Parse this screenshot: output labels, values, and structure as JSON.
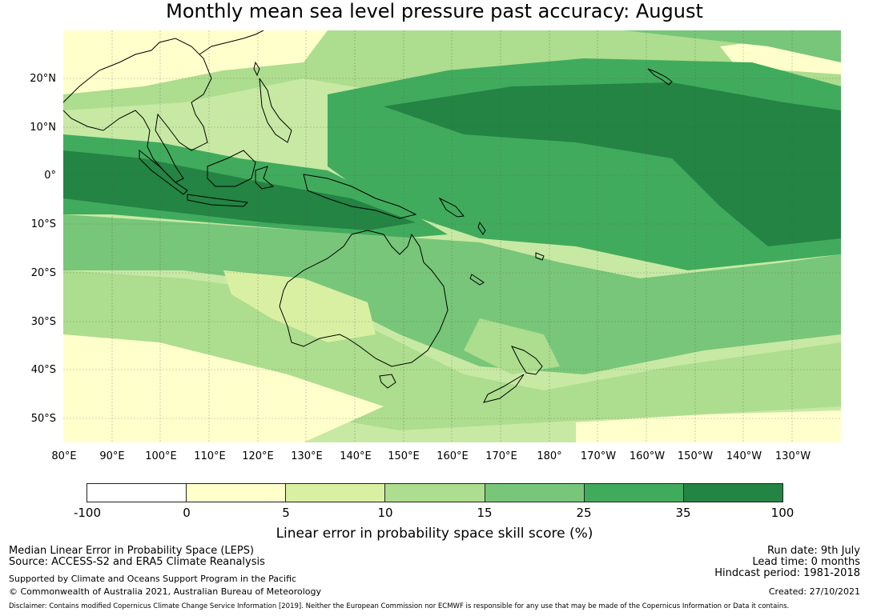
{
  "title": "Monthly mean sea level pressure past accuracy: August",
  "map": {
    "lat_labels": [
      "20°N",
      "10°N",
      "0°",
      "10°S",
      "20°S",
      "30°S",
      "40°S",
      "50°S"
    ],
    "lon_labels": [
      "80°E",
      "90°E",
      "100°E",
      "110°E",
      "120°E",
      "130°E",
      "140°E",
      "150°E",
      "160°E",
      "170°E",
      "180°",
      "170°W",
      "160°W",
      "150°W",
      "140°W",
      "130°W"
    ],
    "lat_range": [
      -56,
      30
    ],
    "lon_range": [
      80,
      240
    ]
  },
  "colorbar": {
    "ticks": [
      "-100",
      "0",
      "5",
      "10",
      "15",
      "25",
      "35",
      "100"
    ],
    "colors": [
      "#ffffff",
      "#ffffcc",
      "#d9f0a3",
      "#addd8e",
      "#78c679",
      "#41ab5d",
      "#238443"
    ],
    "label": "Linear error in probability space skill score (%)"
  },
  "footer": {
    "line1": "Median Linear Error in Probability Space (LEPS)",
    "line2": "Source: ACCESS-S2 and ERA5 Climate Reanalysis",
    "support": "Supported by Climate and Oceans Support Program in the Pacific",
    "copyright": "© Commonwealth of Australia 2021, Australian Bureau of Meteorology",
    "run_date": "Run date: 9th July",
    "lead_time": "Lead time: 0 months",
    "hindcast": "Hindcast period: 1981-2018",
    "created": "Created: 27/10/2021",
    "disclaimer": "Disclaimer: Contains modified Copernicus Climate Change Service Information [2019]. Neither the European Commission nor ECMWF is responsible for any use that may be made of the Copernicus Information or Data it contains."
  }
}
